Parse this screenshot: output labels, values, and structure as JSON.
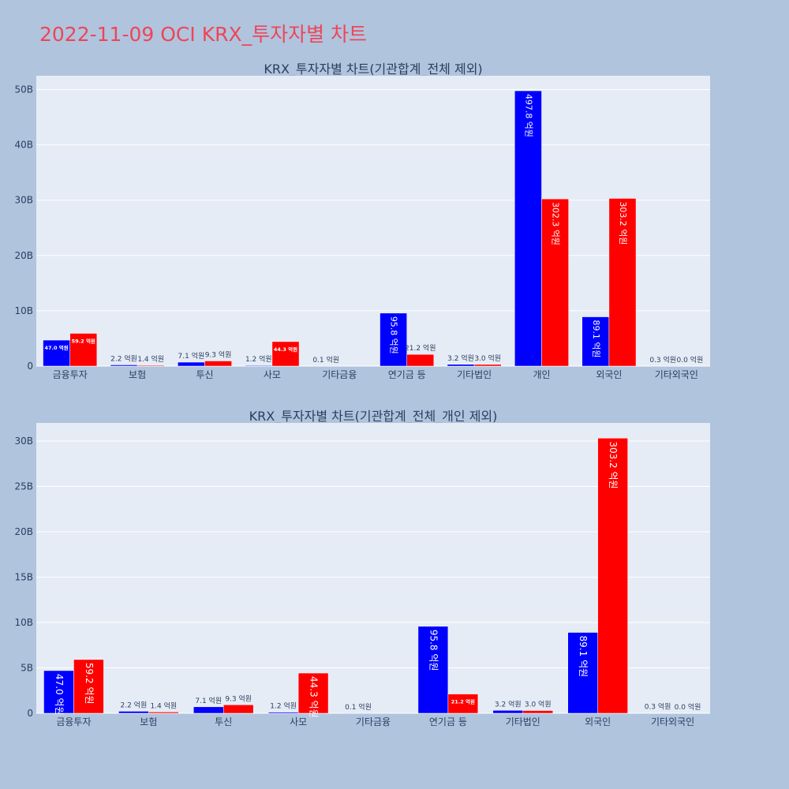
{
  "page": {
    "title": "2022-11-09 OCI KRX_투자자별 차트"
  },
  "colors": {
    "page_background": "#b0c4de",
    "plot_background": "#e5ecf6",
    "title": "#ef4557",
    "buy": "#0000ff",
    "sell": "#ff0000",
    "text": "#2a3f5f"
  },
  "chart_data": [
    {
      "type": "bar",
      "title": "KRX_투자자별 차트(기관합계_전체 제외)",
      "xlabel": "",
      "ylabel": "",
      "grid": true,
      "legend": "none",
      "categories": [
        "금융투자",
        "보험",
        "투신",
        "사모",
        "기타금융",
        "연기금 등",
        "기타법인",
        "개인",
        "외국인",
        "기타외국인"
      ],
      "ylim": [
        0,
        52.5
      ],
      "yticks": [
        0,
        10,
        20,
        30,
        40,
        50
      ],
      "ytick_labels": [
        "0",
        "10B",
        "20B",
        "30B",
        "40B",
        "50B"
      ],
      "series": [
        {
          "color": "#0000ff",
          "values": [
            4.7,
            0.22,
            0.71,
            0.12,
            0.01,
            9.58,
            0.32,
            49.78,
            8.91,
            0.03
          ],
          "labels": [
            "47.0 억원",
            "2.2 억원",
            "7.1 억원",
            "1.2 억원",
            "0.1 억원",
            "95.8 억원",
            "3.2 억원",
            "497.8 억원",
            "89.1 억원",
            "0.3 억원"
          ]
        },
        {
          "color": "#ff0000",
          "values": [
            5.92,
            0.14,
            0.93,
            4.43,
            0.0,
            2.12,
            0.3,
            30.23,
            30.32,
            0.0
          ],
          "labels": [
            "59.2 억원",
            "1.4 억원",
            "9.3 억원",
            "44.3 억원",
            "",
            "21.2 억원",
            "3.0 억원",
            "302.3 억원",
            "303.2 억원",
            "0.0 억원"
          ]
        }
      ]
    },
    {
      "type": "bar",
      "title": "KRX_투자자별 차트(기관합계_전체_개인 제외)",
      "xlabel": "",
      "ylabel": "",
      "grid": true,
      "legend": "none",
      "categories": [
        "금융투자",
        "보험",
        "투신",
        "사모",
        "기타금융",
        "연기금 등",
        "기타법인",
        "외국인",
        "기타외국인"
      ],
      "ylim": [
        0,
        32
      ],
      "yticks": [
        0,
        5,
        10,
        15,
        20,
        25,
        30
      ],
      "ytick_labels": [
        "0",
        "5B",
        "10B",
        "15B",
        "20B",
        "25B",
        "30B"
      ],
      "series": [
        {
          "color": "#0000ff",
          "values": [
            4.7,
            0.22,
            0.71,
            0.12,
            0.01,
            9.58,
            0.32,
            8.91,
            0.03
          ],
          "labels": [
            "47.0 억원",
            "2.2 억원",
            "7.1 억원",
            "1.2 억원",
            "0.1 억원",
            "95.8 억원",
            "3.2 억원",
            "89.1 억원",
            "0.3 억원"
          ]
        },
        {
          "color": "#ff0000",
          "values": [
            5.92,
            0.14,
            0.93,
            4.43,
            0.0,
            2.12,
            0.3,
            30.32,
            0.0
          ],
          "labels": [
            "59.2 억원",
            "1.4 억원",
            "9.3 억원",
            "44.3 억원",
            "",
            "21.2 억원",
            "3.0 억원",
            "303.2 억원",
            "0.0 억원"
          ]
        }
      ]
    }
  ]
}
